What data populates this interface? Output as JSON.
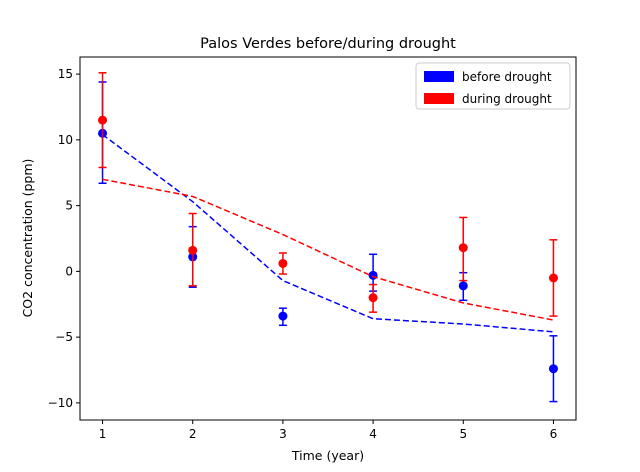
{
  "chart_data": {
    "type": "scatter",
    "title": "Palos Verdes before/during drought",
    "xlabel": "Time (year)",
    "ylabel": "CO2 concentration (ppm)",
    "xlim": [
      0.75,
      6.25
    ],
    "ylim": [
      -11.3,
      16.3
    ],
    "xticks": [
      1,
      2,
      3,
      4,
      5,
      6
    ],
    "yticks": [
      -10,
      -5,
      0,
      5,
      10,
      15
    ],
    "legend_position": "top-right",
    "grid": false,
    "series": [
      {
        "name": "before drought",
        "color": "#0000ff",
        "x": [
          1,
          2,
          3,
          4,
          5,
          6
        ],
        "points": [
          10.5,
          1.1,
          -3.4,
          -0.3,
          -1.1,
          -7.4
        ],
        "err_low": [
          6.7,
          -1.2,
          -4.1,
          -1.5,
          -2.2,
          -9.9
        ],
        "err_high": [
          14.4,
          3.4,
          -2.8,
          1.3,
          -0.1,
          -4.9
        ],
        "trend": [
          10.4,
          5.3,
          -0.7,
          -3.6,
          -4.0,
          -4.6
        ]
      },
      {
        "name": "during drought",
        "color": "#ff0000",
        "x": [
          1,
          2,
          3,
          4,
          5,
          6
        ],
        "points": [
          11.5,
          1.6,
          0.6,
          -2.0,
          1.8,
          -0.5
        ],
        "err_low": [
          7.9,
          -1.1,
          -0.2,
          -3.1,
          -0.7,
          -3.4
        ],
        "err_high": [
          15.1,
          4.4,
          1.4,
          -1.0,
          4.1,
          2.4
        ],
        "trend": [
          7.0,
          5.7,
          2.8,
          -0.4,
          -2.4,
          -3.7
        ]
      }
    ]
  }
}
